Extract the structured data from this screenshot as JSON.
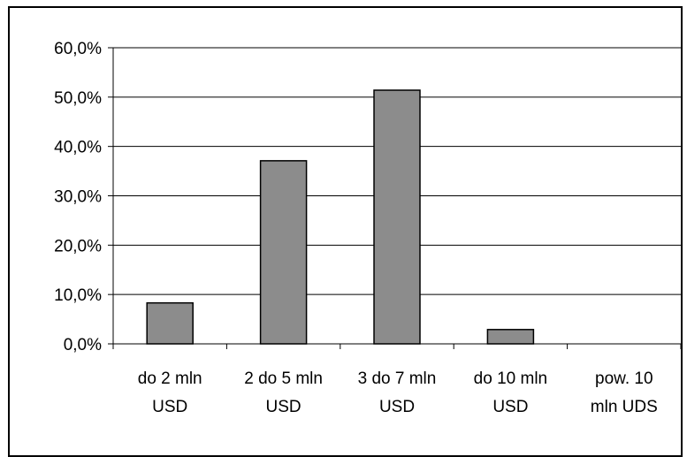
{
  "chart_data": {
    "type": "bar",
    "title": "",
    "xlabel": "",
    "ylabel": "",
    "categories": [
      [
        "do 2 mln",
        "USD"
      ],
      [
        "2 do 5 mln",
        "USD"
      ],
      [
        "3 do 7 mln",
        "USD"
      ],
      [
        "do 10 mln",
        "USD"
      ],
      [
        "pow. 10",
        "mln UDS"
      ]
    ],
    "values": [
      8.3,
      37.1,
      51.4,
      2.9,
      0.0
    ],
    "ylim": [
      0,
      60
    ],
    "yticks": [
      "0,0%",
      "10,0%",
      "20,0%",
      "30,0%",
      "40,0%",
      "50,0%",
      "60,0%"
    ],
    "grid": true,
    "legend": "none",
    "colors": {
      "bar": "#8c8c8c",
      "bar_stroke": "#000000",
      "grid": "#000000"
    }
  }
}
